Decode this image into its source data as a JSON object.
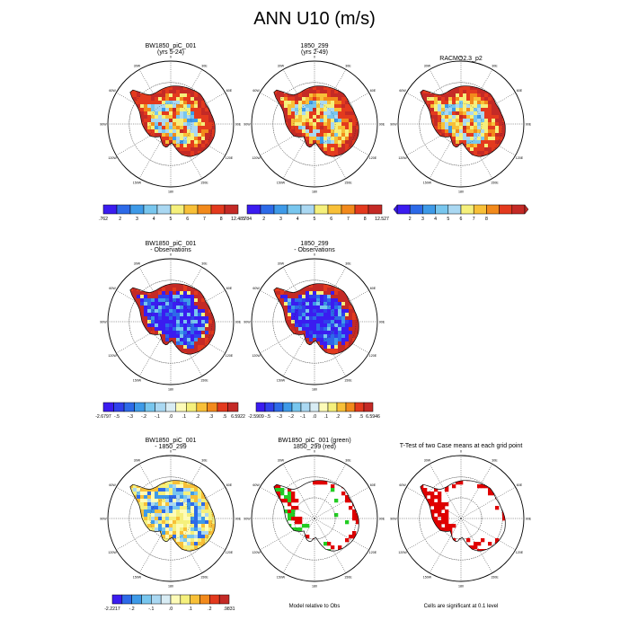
{
  "chart_data": {
    "type": "heatmap",
    "title": "ANN U10 (m/s)",
    "lon_labels": [
      "0",
      "30E",
      "60E",
      "90E",
      "120E",
      "150E",
      "180",
      "150W",
      "120W",
      "90W",
      "60W",
      "30W"
    ],
    "panels": [
      {
        "id": "p1",
        "title": [
          "BW1850_piC_001",
          "(yrs 5-24)"
        ],
        "style": "abs",
        "colorbar": {
          "colors": [
            "#3b1cf0",
            "#2d6ae8",
            "#3e9ae8",
            "#78c6ee",
            "#aad8f2",
            "#f5f07c",
            "#f8c038",
            "#f28a1c",
            "#e33a1e",
            "#c42a26"
          ],
          "labels": [
            ".762",
            "2",
            "3",
            "4",
            "5",
            "6",
            "7",
            "8",
            "12.485"
          ]
        }
      },
      {
        "id": "p2",
        "title": [
          "1850_299",
          "(yrs 2-49)"
        ],
        "style": "abs",
        "colorbar": {
          "colors": [
            "#3b1cf0",
            "#2d6ae8",
            "#3e9ae8",
            "#78c6ee",
            "#aad8f2",
            "#f5f07c",
            "#f8c038",
            "#f28a1c",
            "#e33a1e",
            "#c42a26"
          ],
          "labels": [
            ".784",
            "2",
            "3",
            "4",
            "5",
            "6",
            "7",
            "8",
            "12.527"
          ]
        }
      },
      {
        "id": "p3",
        "title": [
          "RACMO2.3_p2"
        ],
        "style": "abs",
        "colorbar": {
          "colors": [
            "#3b1cf0",
            "#2d6ae8",
            "#3e9ae8",
            "#78c6ee",
            "#aad8f2",
            "#f5f07c",
            "#f8c038",
            "#f28a1c",
            "#e33a1e",
            "#c42a26"
          ],
          "labels": [
            "2",
            "3",
            "4",
            "5",
            "6",
            "7",
            "8"
          ],
          "open_ends": true
        }
      },
      {
        "id": "p4",
        "title": [
          "BW1850_piC_001",
          "- Observations"
        ],
        "style": "diff",
        "colorbar": {
          "colors": [
            "#3b1cf0",
            "#3040ec",
            "#2d6ae8",
            "#3e9ae8",
            "#78c6ee",
            "#aad8f2",
            "#d8ecf4",
            "#fdfbb8",
            "#f5f07c",
            "#f8c038",
            "#f28a1c",
            "#e33a1e",
            "#c42a26"
          ],
          "labels": [
            "-2.6797",
            "-.5",
            "-.3",
            "-.2",
            "-.1",
            ".0",
            ".1",
            ".2",
            ".3",
            ".5",
            "6.5922"
          ]
        }
      },
      {
        "id": "p5",
        "title": [
          "1850_299",
          "- Observations"
        ],
        "style": "diff",
        "colorbar": {
          "colors": [
            "#3b1cf0",
            "#3040ec",
            "#2d6ae8",
            "#3e9ae8",
            "#78c6ee",
            "#aad8f2",
            "#d8ecf4",
            "#fdfbb8",
            "#f5f07c",
            "#f8c038",
            "#f28a1c",
            "#e33a1e",
            "#c42a26"
          ],
          "labels": [
            "-2.5909",
            "-.5",
            "-.3",
            "-.2",
            "-.1",
            ".0",
            ".1",
            ".2",
            ".3",
            ".5",
            "6.5946"
          ]
        }
      },
      {
        "id": "p6",
        "title": [
          "BW1850_piC_001",
          "- 1850_299"
        ],
        "style": "cmp",
        "colorbar": {
          "colors": [
            "#3b1cf0",
            "#2d6ae8",
            "#3e9ae8",
            "#78c6ee",
            "#aad8f2",
            "#d8ecf4",
            "#fdfbb8",
            "#f5f07c",
            "#f8c038",
            "#f28a1c",
            "#e33a1e",
            "#c42a26"
          ],
          "labels": [
            "-2.2217",
            "-.2",
            "-.1",
            ".0",
            ".1",
            ".2",
            ".9831"
          ]
        }
      },
      {
        "id": "p7",
        "title": [
          "BW1850_piC_001 (green)",
          "1850_299 (red)"
        ],
        "style": "sig2",
        "note": "Model relative to Obs"
      },
      {
        "id": "p8",
        "title": [
          "T-Test of two Case means at each grid point"
        ],
        "style": "sig",
        "note": "Cells are significant at 0.1 level"
      }
    ]
  }
}
